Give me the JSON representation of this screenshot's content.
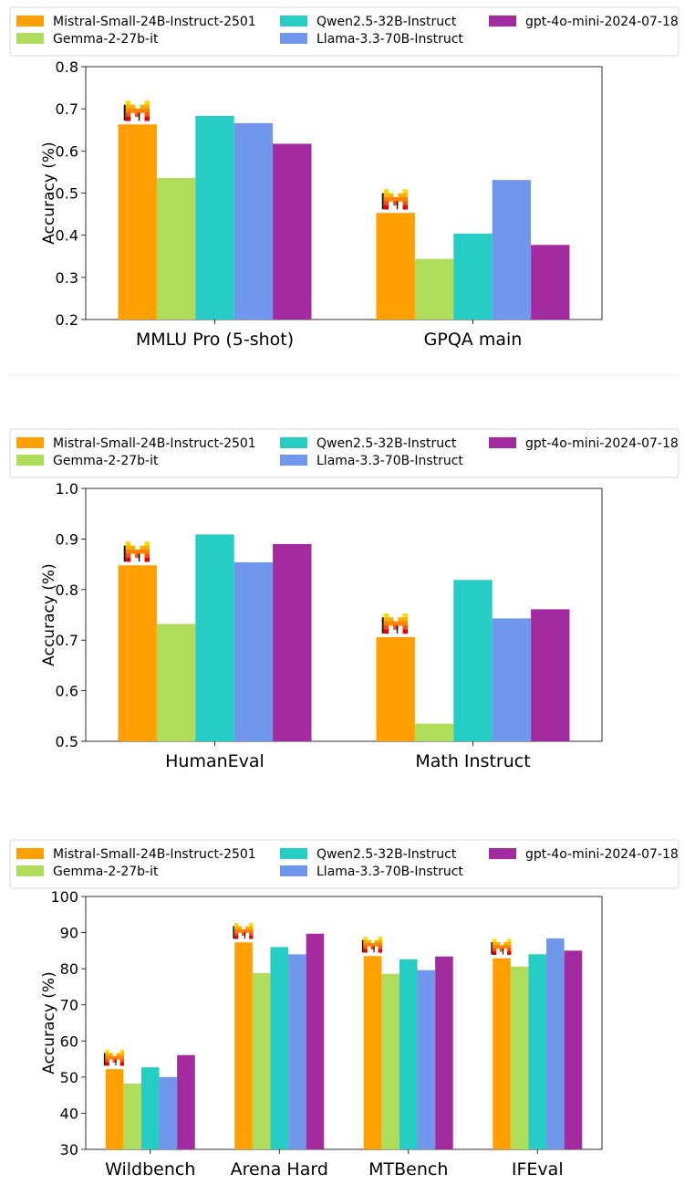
{
  "series_colors": {
    "Mistral-Small-24B-Instruct-2501": "#ffa000",
    "Gemma-2-27b-it": "#b0dc5c",
    "Qwen2.5-32B-Instruct": "#26cdc5",
    "Llama-3.3-70B-Instruct": "#7097ec",
    "gpt-4o-mini-2024-07-18": "#a42aa0"
  },
  "chart_data": [
    {
      "type": "bar",
      "ylabel": "Accuracy (%)",
      "ylim": [
        0.2,
        0.8
      ],
      "yticks": [
        "0.2",
        "0.3",
        "0.4",
        "0.5",
        "0.6",
        "0.7",
        "0.8"
      ],
      "grid": false,
      "legend": "top",
      "categories": [
        "MMLU Pro (5-shot)",
        "GPQA main"
      ],
      "series": [
        {
          "name": "Mistral-Small-24B-Instruct-2501",
          "values": [
            0.663,
            0.453
          ]
        },
        {
          "name": "Gemma-2-27b-it",
          "values": [
            0.536,
            0.344
          ]
        },
        {
          "name": "Qwen2.5-32B-Instruct",
          "values": [
            0.683,
            0.404
          ]
        },
        {
          "name": "Llama-3.3-70B-Instruct",
          "values": [
            0.666,
            0.531
          ]
        },
        {
          "name": "gpt-4o-mini-2024-07-18",
          "values": [
            0.617,
            0.377
          ]
        }
      ],
      "annotation": "Mistral logo above Mistral-Small bars"
    },
    {
      "type": "bar",
      "ylabel": "Accuracy (%)",
      "ylim": [
        0.5,
        1.0
      ],
      "yticks": [
        "0.5",
        "0.6",
        "0.7",
        "0.8",
        "0.9",
        "1.0"
      ],
      "grid": false,
      "legend": "top",
      "categories": [
        "HumanEval",
        "Math Instruct"
      ],
      "series": [
        {
          "name": "Mistral-Small-24B-Instruct-2501",
          "values": [
            0.848,
            0.706
          ]
        },
        {
          "name": "Gemma-2-27b-it",
          "values": [
            0.732,
            0.535
          ]
        },
        {
          "name": "Qwen2.5-32B-Instruct",
          "values": [
            0.909,
            0.819
          ]
        },
        {
          "name": "Llama-3.3-70B-Instruct",
          "values": [
            0.854,
            0.743
          ]
        },
        {
          "name": "gpt-4o-mini-2024-07-18",
          "values": [
            0.89,
            0.761
          ]
        }
      ],
      "annotation": "Mistral logo above Mistral-Small bars"
    },
    {
      "type": "bar",
      "ylabel": "Accuracy (%)",
      "ylim": [
        30,
        100
      ],
      "yticks": [
        "30",
        "40",
        "50",
        "60",
        "70",
        "80",
        "90",
        "100"
      ],
      "grid": false,
      "legend": "top",
      "categories": [
        "Wildbench",
        "Arena Hard",
        "MTBench",
        "IFEval"
      ],
      "series": [
        {
          "name": "Mistral-Small-24B-Instruct-2501",
          "values": [
            52.2,
            87.3,
            83.5,
            82.9
          ]
        },
        {
          "name": "Gemma-2-27b-it",
          "values": [
            48.2,
            78.8,
            78.6,
            80.6
          ]
        },
        {
          "name": "Qwen2.5-32B-Instruct",
          "values": [
            52.7,
            86.0,
            82.6,
            84.0
          ]
        },
        {
          "name": "Llama-3.3-70B-Instruct",
          "values": [
            50.0,
            84.0,
            79.6,
            88.4
          ]
        },
        {
          "name": "gpt-4o-mini-2024-07-18",
          "values": [
            56.1,
            89.7,
            83.4,
            85.0
          ]
        }
      ],
      "annotation": "Mistral logo above Mistral-Small bars"
    }
  ]
}
